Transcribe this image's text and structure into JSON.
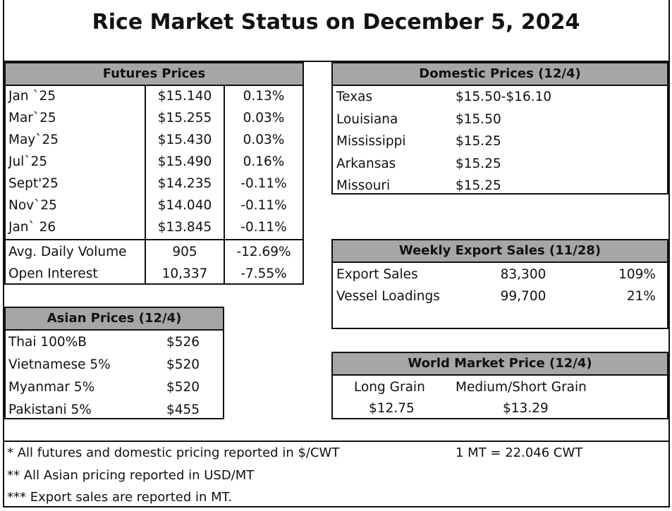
{
  "title": "Rice Market Status on December 5, 2024",
  "futures": {
    "header": "Futures Prices",
    "rows": [
      {
        "month": "Jan `25",
        "price": "$15.140",
        "change": "0.13%"
      },
      {
        "month": "Mar`25",
        "price": "$15.255",
        "change": "0.03%"
      },
      {
        "month": "May`25",
        "price": "$15.430",
        "change": "0.03%"
      },
      {
        "month": "Jul`25",
        "price": "$15.490",
        "change": "0.16%"
      },
      {
        "month": "Sept'25",
        "price": "$14.235",
        "change": "-0.11%"
      },
      {
        "month": "Nov`25",
        "price": "$14.040",
        "change": "-0.11%"
      },
      {
        "month": "Jan` 26",
        "price": "$13.845",
        "change": "-0.11%"
      }
    ],
    "stats": [
      {
        "label": "Avg. Daily Volume",
        "value": "905",
        "change": "-12.69%"
      },
      {
        "label": "Open Interest",
        "value": "10,337",
        "change": "-7.55%"
      }
    ]
  },
  "domestic": {
    "header": "Domestic Prices (12/4)",
    "rows": [
      {
        "state": "Texas",
        "price": "$15.50-$16.10"
      },
      {
        "state": "Louisiana",
        "price": "$15.50"
      },
      {
        "state": "Mississippi",
        "price": "$15.25"
      },
      {
        "state": "Arkansas",
        "price": "$15.25"
      },
      {
        "state": "Missouri",
        "price": "$15.25"
      }
    ]
  },
  "export": {
    "header": "Weekly Export Sales (11/28)",
    "rows": [
      {
        "label": "Export Sales",
        "value": "83,300",
        "pct": "109%"
      },
      {
        "label": "Vessel Loadings",
        "value": "99,700",
        "pct": "21%"
      }
    ]
  },
  "asian": {
    "header": "Asian Prices (12/4)",
    "rows": [
      {
        "label": "Thai 100%B",
        "price": "$526"
      },
      {
        "label": "Vietnamese 5%",
        "price": "$520"
      },
      {
        "label": "Myanmar 5%",
        "price": "$520"
      },
      {
        "label": "Pakistani 5%",
        "price": "$455"
      }
    ]
  },
  "world": {
    "header": "World Market Price (12/4)",
    "long_label": "Long Grain",
    "long_price": "$12.75",
    "medium_label": "Medium/Short Grain",
    "medium_price": "$13.29"
  },
  "footnotes": {
    "note1": "* All futures and domestic pricing reported in $/CWT",
    "conversion": "1 MT = 22.046 CWT",
    "note2": "** All Asian pricing reported in USD/MT",
    "note3": "*** Export sales are reported in MT."
  },
  "colors": {
    "header_bg": "#a6a6a6",
    "border": "#111111"
  }
}
